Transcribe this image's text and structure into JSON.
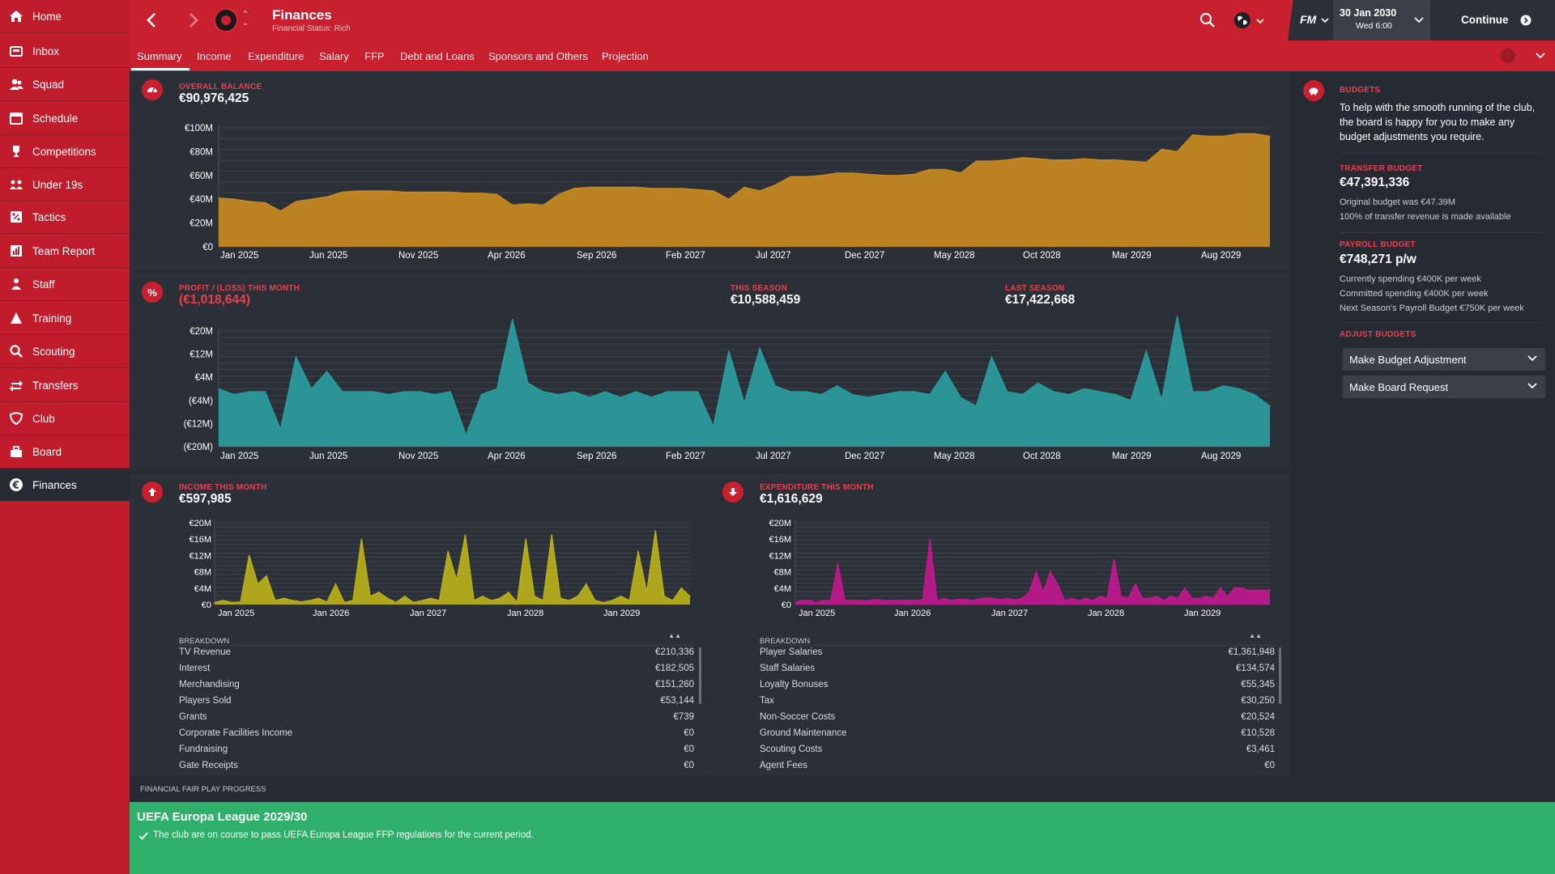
{
  "nav": {
    "items": [
      {
        "label": "Home",
        "icon": "home-icon"
      },
      {
        "label": "Inbox",
        "icon": "inbox-icon"
      },
      {
        "label": "Squad",
        "icon": "squad-icon"
      },
      {
        "label": "Schedule",
        "icon": "calendar-icon"
      },
      {
        "label": "Competitions",
        "icon": "trophy-icon"
      },
      {
        "label": "Under 19s",
        "icon": "youth-icon"
      },
      {
        "label": "Tactics",
        "icon": "tactics-icon"
      },
      {
        "label": "Team Report",
        "icon": "report-icon"
      },
      {
        "label": "Staff",
        "icon": "staff-icon"
      },
      {
        "label": "Training",
        "icon": "training-icon"
      },
      {
        "label": "Scouting",
        "icon": "search-icon"
      },
      {
        "label": "Transfers",
        "icon": "transfers-icon"
      },
      {
        "label": "Club",
        "icon": "shield-icon"
      },
      {
        "label": "Board",
        "icon": "board-icon"
      },
      {
        "label": "Finances",
        "icon": "euro-icon"
      }
    ]
  },
  "header": {
    "title": "Finances",
    "subtitle": "Financial Status: Rich",
    "date": "30 Jan 2030",
    "day_time": "Wed 6:00",
    "continue_label": "Continue",
    "fm_label": "FM"
  },
  "tabs": [
    "Summary",
    "Income",
    "Expenditure",
    "Salary",
    "FFP",
    "Debt and Loans",
    "Sponsors and Others",
    "Projection"
  ],
  "overall": {
    "label": "OVERALL BALANCE",
    "value": "€90,976,425"
  },
  "profit": {
    "label": "PROFIT / (LOSS) THIS MONTH",
    "value": "(€1,018,644)",
    "season_label": "THIS SEASON",
    "season_value": "€10,588,459",
    "last_label": "LAST SEASON",
    "last_value": "€17,422,668"
  },
  "income": {
    "label": "INCOME THIS MONTH",
    "value": "€597,985",
    "breakdown_label": "BREAKDOWN",
    "rows": [
      {
        "name": "TV Revenue",
        "value": "€210,336"
      },
      {
        "name": "Interest",
        "value": "€182,505"
      },
      {
        "name": "Merchandising",
        "value": "€151,260"
      },
      {
        "name": "Players Sold",
        "value": "€53,144"
      },
      {
        "name": "Grants",
        "value": "€739"
      },
      {
        "name": "Corporate Facilities Income",
        "value": "€0"
      },
      {
        "name": "Fundraising",
        "value": "€0"
      },
      {
        "name": "Gate Receipts",
        "value": "€0"
      }
    ]
  },
  "expenditure": {
    "label": "EXPENDITURE THIS MONTH",
    "value": "€1,616,629",
    "breakdown_label": "BREAKDOWN",
    "rows": [
      {
        "name": "Player Salaries",
        "value": "€1,361,948"
      },
      {
        "name": "Staff Salaries",
        "value": "€134,574"
      },
      {
        "name": "Loyalty Bonuses",
        "value": "€55,345"
      },
      {
        "name": "Tax",
        "value": "€30,250"
      },
      {
        "name": "Non-Soccer Costs",
        "value": "€20,524"
      },
      {
        "name": "Ground Maintenance",
        "value": "€10,528"
      },
      {
        "name": "Scouting Costs",
        "value": "€3,461"
      },
      {
        "name": "Agent Fees",
        "value": "€0"
      }
    ]
  },
  "budgets": {
    "title": "BUDGETS",
    "intro": "To help with the smooth running of the club, the board is happy for you to make any budget adjustments you require.",
    "transfer_label": "TRANSFER BUDGET",
    "transfer_value": "€47,391,336",
    "transfer_note1": "Original budget was €47.39M",
    "transfer_note2": "100% of transfer revenue is made available",
    "payroll_label": "PAYROLL BUDGET",
    "payroll_value": "€748,271 p/w",
    "payroll_note1": "Currently spending €400K per week",
    "payroll_note2": "Committed spending €400K per week",
    "payroll_note3": "Next Season's Payroll Budget €750K per week",
    "adjust_label": "ADJUST BUDGETS",
    "dropdown1": "Make Budget Adjustment",
    "dropdown2": "Make Board Request"
  },
  "ffp": {
    "section_label": "FINANCIAL FAIR PLAY PROGRESS",
    "title": "UEFA Europa League 2029/30",
    "message": "The club are on course to pass UEFA Europa League FFP regulations for the current period."
  },
  "colors": {
    "brand": "#c8202f",
    "balance": "#c88a22",
    "profit": "#2a9c9e",
    "income": "#b8b11a",
    "expenditure": "#c0198e",
    "ffp": "#2eb06a"
  },
  "chart_data": [
    {
      "type": "area",
      "title": "",
      "series": [
        {
          "values": [
            41,
            40,
            38,
            37,
            30,
            38,
            40,
            42,
            46,
            47,
            47,
            47,
            46,
            46,
            46,
            46,
            45,
            45,
            44,
            35,
            36,
            35,
            44,
            49,
            50,
            50,
            50,
            50,
            49,
            49,
            49,
            48,
            47,
            40,
            50,
            47,
            52,
            59,
            59,
            60,
            62,
            62,
            61,
            60,
            60,
            61,
            65,
            65,
            62,
            72,
            72,
            73,
            75,
            74,
            73,
            73,
            74,
            73,
            73,
            72,
            71,
            82,
            80,
            94,
            93,
            93,
            95,
            95,
            93
          ]
        }
      ],
      "x_labels": [
        "Jan 2025",
        "Jun 2025",
        "Nov 2025",
        "Apr 2026",
        "Sep 2026",
        "Feb 2027",
        "Jul 2027",
        "Dec 2027",
        "May 2028",
        "Oct 2028",
        "Mar 2029",
        "Aug 2029"
      ],
      "y_ticks": [
        "€100M",
        "€80M",
        "€60M",
        "€40M",
        "€20M",
        "€0"
      ],
      "ylim": [
        0,
        100
      ]
    },
    {
      "type": "area",
      "title": "",
      "series": [
        {
          "values": [
            0,
            -2,
            -1,
            -1,
            -14,
            11,
            0,
            6,
            -1,
            -1,
            -1,
            -2,
            -1,
            -1,
            -2,
            -1,
            -16,
            -2,
            0,
            24,
            2,
            -1,
            -2,
            -1,
            -3,
            -1,
            -3,
            -1,
            -3,
            -1,
            -1,
            -1,
            -13,
            13,
            -5,
            14,
            1,
            -1,
            -1,
            -2,
            1,
            -2,
            -3,
            -2,
            -1,
            -1,
            -2,
            6,
            -3,
            -6,
            11,
            -1,
            -2,
            2,
            -1,
            -2,
            0,
            -1,
            -2,
            -4,
            13,
            -4,
            25,
            -1,
            -1,
            1,
            0,
            -2,
            -6
          ]
        }
      ],
      "x_labels": [
        "Jan 2025",
        "Jun 2025",
        "Nov 2025",
        "Apr 2026",
        "Sep 2026",
        "Feb 2027",
        "Jul 2027",
        "Dec 2027",
        "May 2028",
        "Oct 2028",
        "Mar 2029",
        "Aug 2029"
      ],
      "y_ticks": [
        "€20M",
        "€12M",
        "€4M",
        "(€4M)",
        "(€12M)",
        "(€20M)"
      ],
      "ylim": [
        -20,
        20
      ]
    },
    {
      "type": "area",
      "title": "",
      "series": [
        {
          "values": [
            0.5,
            1,
            0.5,
            0.6,
            12,
            5,
            7,
            1,
            1.5,
            1,
            0.6,
            1,
            1.5,
            0.6,
            5,
            0.5,
            1,
            16,
            2,
            3,
            1.5,
            0.5,
            2,
            0.5,
            1,
            1.5,
            1,
            13,
            6,
            17,
            1,
            2,
            1,
            1.5,
            3,
            0.5,
            16,
            2,
            1,
            17,
            1.5,
            1,
            2,
            5,
            1,
            0.5,
            1,
            2,
            1,
            13,
            3,
            18,
            2,
            1,
            4,
            2
          ]
        }
      ],
      "x_labels": [
        "Jan 2025",
        "Jan 2026",
        "Jan 2027",
        "Jan 2028",
        "Jan 2029"
      ],
      "y_ticks": [
        "€20M",
        "€16M",
        "€12M",
        "€8M",
        "€4M",
        "€0"
      ],
      "ylim": [
        0,
        20
      ]
    },
    {
      "type": "area",
      "title": "",
      "series": [
        {
          "values": [
            0.5,
            1,
            1,
            0.5,
            1,
            1,
            10,
            1,
            1,
            1,
            0.8,
            1.2,
            1.1,
            0.9,
            1,
            1,
            1.1,
            1,
            1.2,
            16,
            1,
            1.5,
            1,
            1.2,
            1.3,
            1,
            1.4,
            1.6,
            1.5,
            1.2,
            1.5,
            1.1,
            1.5,
            3,
            8,
            3,
            8,
            5,
            1,
            1.5,
            1,
            1.5,
            1,
            2,
            1.5,
            11,
            2,
            1.5,
            5,
            1.5,
            1.5,
            2,
            1,
            2,
            1.5,
            4,
            1.5,
            1.5,
            2,
            1.5,
            4,
            2,
            4,
            4,
            3.5,
            3.5,
            3.5,
            3.5
          ]
        }
      ],
      "x_labels": [
        "Jan 2025",
        "Jan 2026",
        "Jan 2027",
        "Jan 2028",
        "Jan 2029"
      ],
      "y_ticks": [
        "€20M",
        "€16M",
        "€12M",
        "€8M",
        "€4M",
        "€0"
      ],
      "ylim": [
        0,
        20
      ]
    }
  ]
}
